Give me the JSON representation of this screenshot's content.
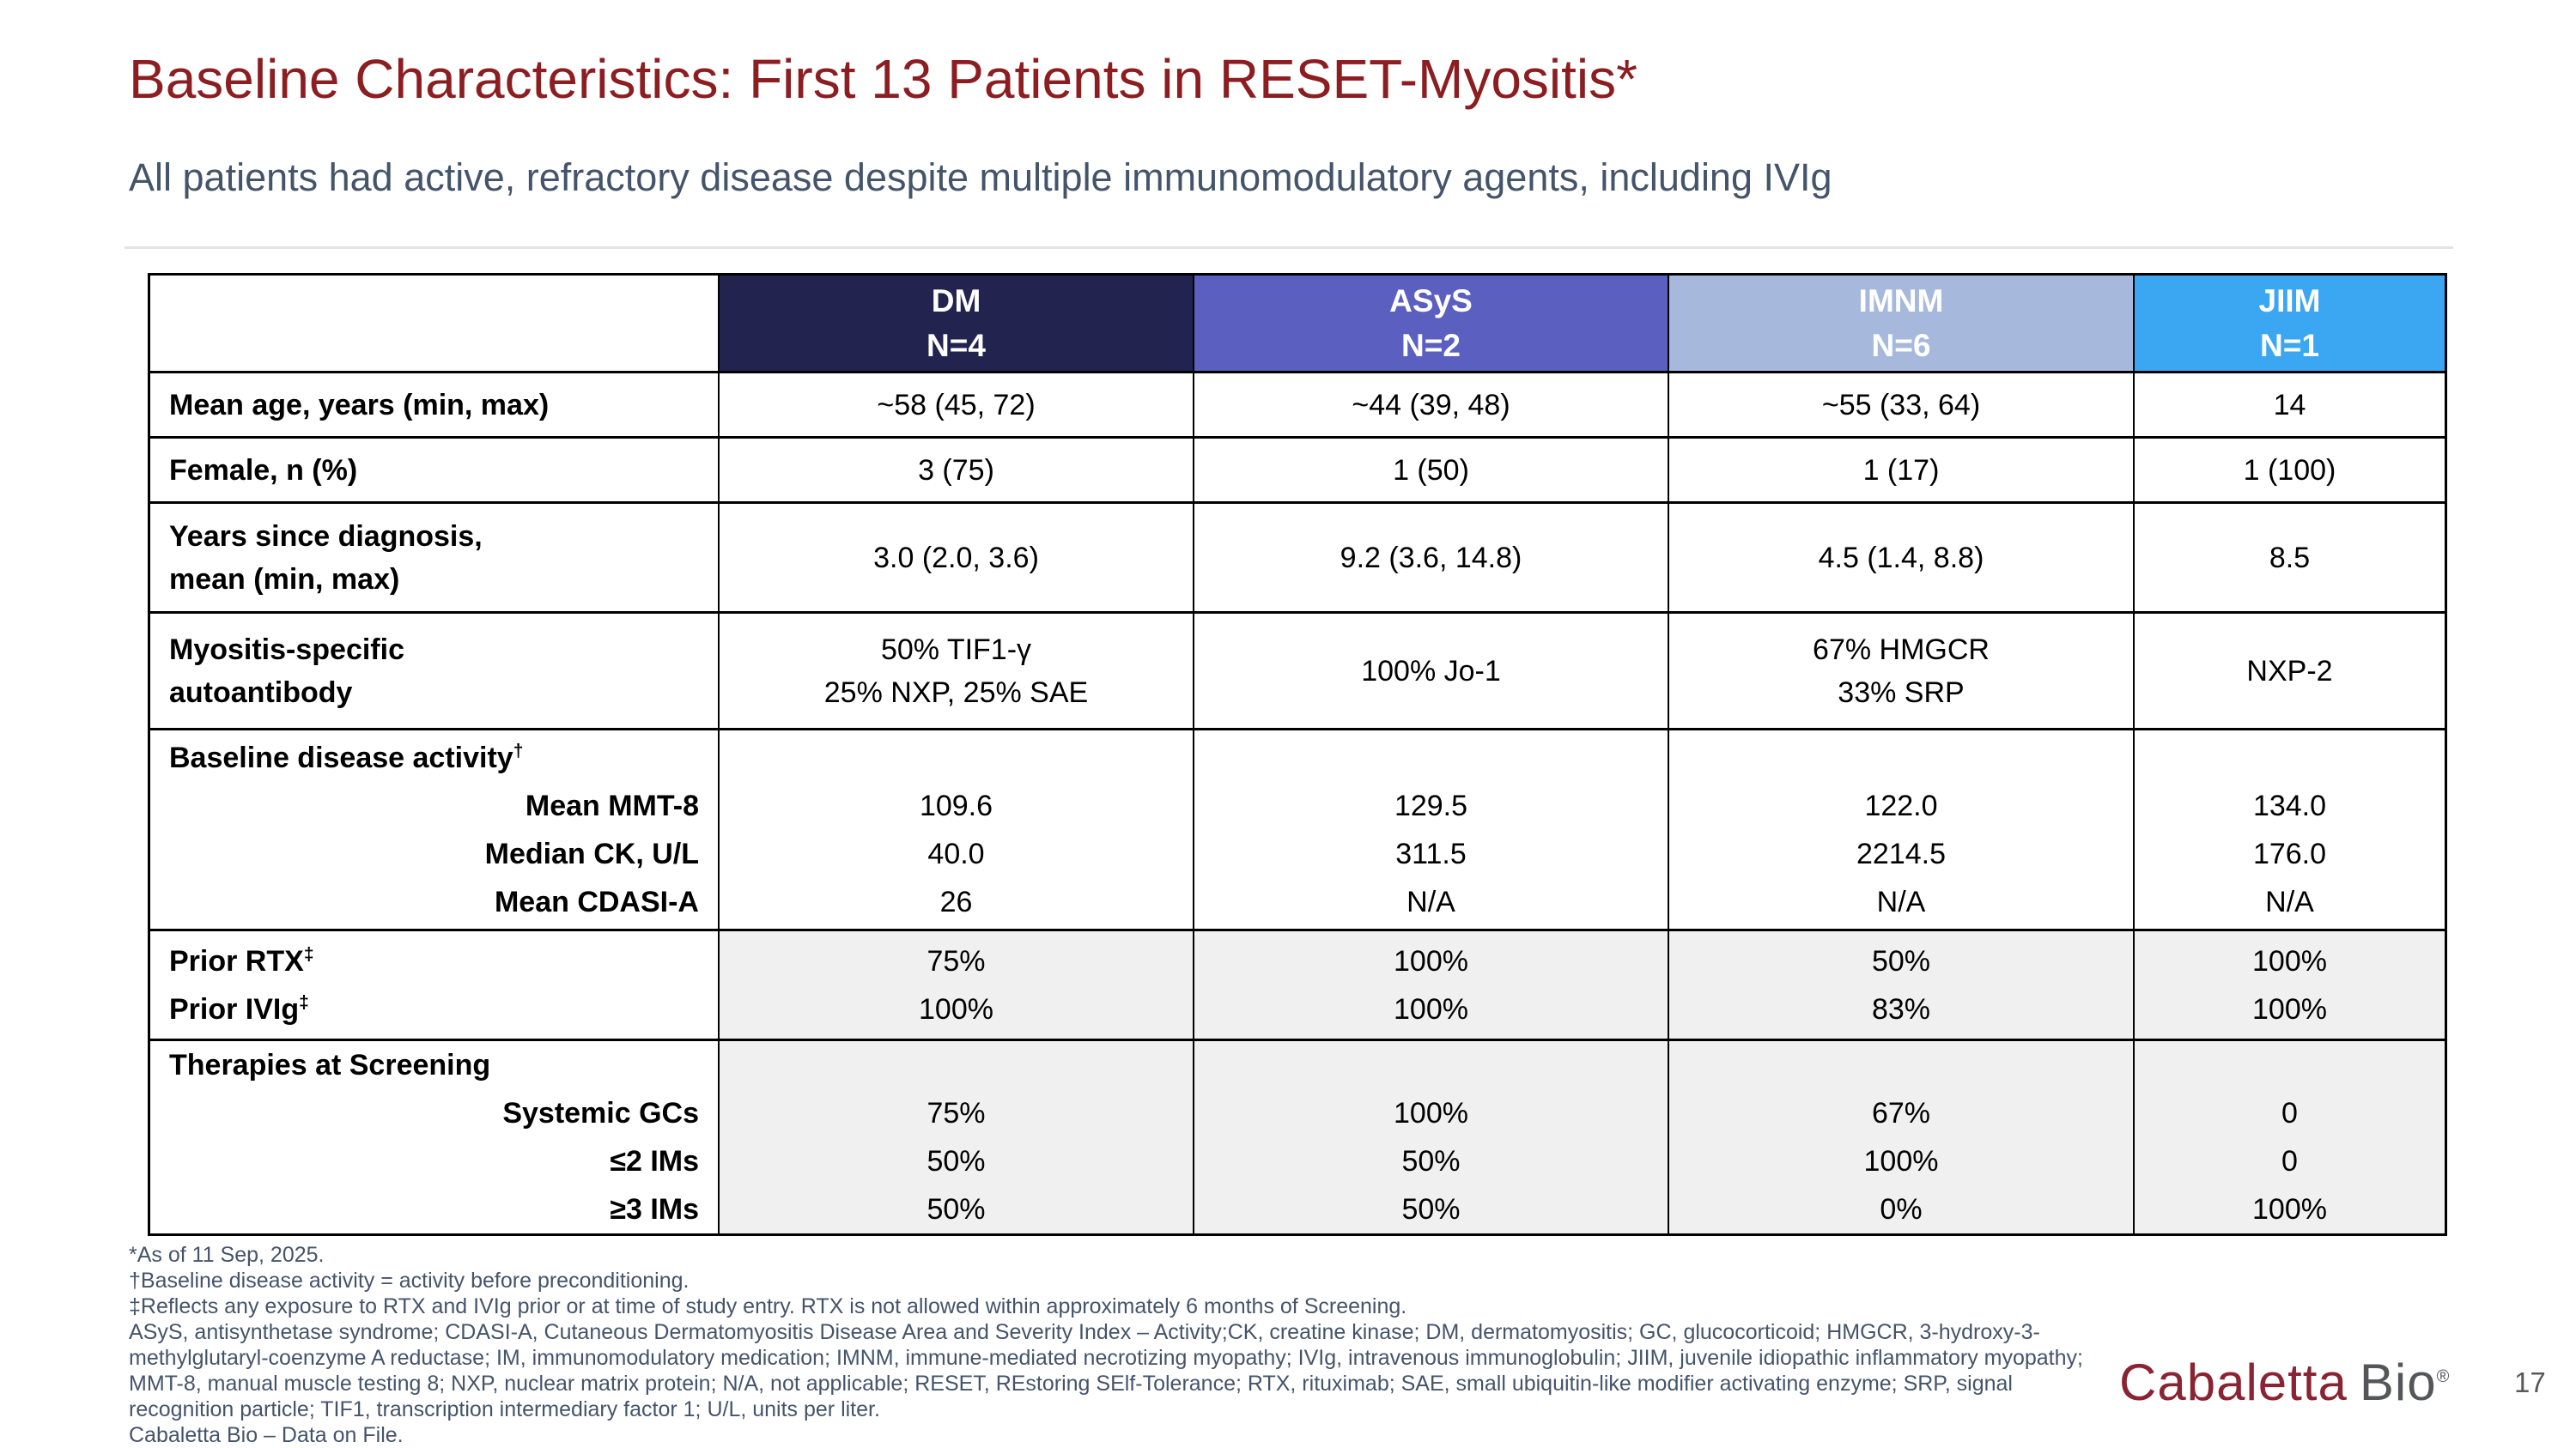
{
  "slide": {
    "title": "Baseline Characteristics: First 13 Patients in RESET-Myositis*",
    "subtitle": "All patients had active, refractory disease despite multiple immunomodulatory agents, including IVIg",
    "page_number": "17",
    "logo": {
      "part1": "Cabaletta",
      "part2": "Bio",
      "reg": "®"
    }
  },
  "theme": {
    "title_color": "#8C1D21",
    "subtitle_color": "#44546A",
    "footnote_color": "#44546A",
    "logo_red": "#8A2432",
    "logo_gray": "#54565A",
    "page_number_color": "#595959",
    "shaded_cell_bg": "#f0f0f0"
  },
  "table": {
    "columns": [
      {
        "name": "",
        "n": "",
        "color": "#ffffff"
      },
      {
        "name": "DM",
        "n": "N=4",
        "color": "#232350"
      },
      {
        "name": "ASyS",
        "n": "N=2",
        "color": "#5B5FC0"
      },
      {
        "name": "IMNM",
        "n": "N=6",
        "color": "#A6B9DC"
      },
      {
        "name": "JIIM",
        "n": "N=1",
        "color": "#3BA6F2"
      }
    ],
    "rows": [
      {
        "label_lines": [
          {
            "text": "Mean age, years (min, max)",
            "align": "left"
          }
        ],
        "values": [
          [
            "~58 (45, 72)"
          ],
          [
            "~44 (39, 48)"
          ],
          [
            "~55 (33, 64)"
          ],
          [
            "14"
          ]
        ],
        "line_mode": false,
        "shaded": false
      },
      {
        "label_lines": [
          {
            "text": "Female, n (%)",
            "align": "left"
          }
        ],
        "values": [
          [
            "3 (75)"
          ],
          [
            "1 (50)"
          ],
          [
            "1 (17)"
          ],
          [
            "1 (100)"
          ]
        ],
        "line_mode": false,
        "shaded": false
      },
      {
        "label_lines": [
          {
            "text": "Years since diagnosis,",
            "align": "left"
          },
          {
            "text": "mean (min, max)",
            "align": "left"
          }
        ],
        "values": [
          [
            "3.0 (2.0, 3.6)"
          ],
          [
            "9.2 (3.6, 14.8)"
          ],
          [
            "4.5 (1.4, 8.8)"
          ],
          [
            "8.5"
          ]
        ],
        "line_mode": false,
        "shaded": false
      },
      {
        "label_lines": [
          {
            "text": "Myositis-specific",
            "align": "left"
          },
          {
            "text": "autoantibody",
            "align": "left"
          }
        ],
        "values": [
          [
            "50% TIF1-γ",
            "25% NXP, 25% SAE"
          ],
          [
            "100% Jo-1"
          ],
          [
            "67% HMGCR",
            "33% SRP"
          ],
          [
            "NXP-2"
          ]
        ],
        "line_mode": false,
        "shaded": false
      },
      {
        "label_lines": [
          {
            "text": "Baseline disease activity",
            "sup": "†",
            "align": "left"
          },
          {
            "text": "Mean MMT-8",
            "align": "right"
          },
          {
            "text": "Median CK, U/L",
            "align": "right"
          },
          {
            "text": "Mean CDASI-A",
            "align": "right"
          }
        ],
        "values": [
          [
            "",
            "109.6",
            "40.0",
            "26"
          ],
          [
            "",
            "129.5",
            "311.5",
            "N/A"
          ],
          [
            "",
            "122.0",
            "2214.5",
            "N/A"
          ],
          [
            "",
            "134.0",
            "176.0",
            "N/A"
          ]
        ],
        "line_mode": true,
        "shaded": false
      },
      {
        "label_lines": [
          {
            "text": "Prior RTX",
            "sup": "‡",
            "align": "left"
          },
          {
            "text": "Prior IVIg",
            "sup": "‡",
            "align": "left"
          }
        ],
        "values": [
          [
            "75%",
            "100%"
          ],
          [
            "100%",
            "100%"
          ],
          [
            "50%",
            "83%"
          ],
          [
            "100%",
            "100%"
          ]
        ],
        "line_mode": true,
        "shaded": true
      },
      {
        "label_lines": [
          {
            "text": "Therapies at Screening",
            "align": "left"
          },
          {
            "text": "Systemic GCs",
            "align": "right"
          },
          {
            "text": "≤2 IMs",
            "align": "right"
          },
          {
            "text": "≥3 IMs",
            "align": "right"
          }
        ],
        "values": [
          [
            "",
            "75%",
            "50%",
            "50%"
          ],
          [
            "",
            "100%",
            "50%",
            "50%"
          ],
          [
            "",
            "67%",
            "100%",
            "0%"
          ],
          [
            "",
            "0",
            "0",
            "100%"
          ]
        ],
        "line_mode": true,
        "shaded": true
      }
    ]
  },
  "footnotes": {
    "lines": [
      "*As of 11 Sep, 2025.",
      "†Baseline disease activity = activity before preconditioning.",
      "‡Reflects any exposure to RTX and IVIg prior or at time of study entry. RTX is not allowed within approximately 6 months of Screening.",
      "ASyS, antisynthetase syndrome; CDASI-A, Cutaneous Dermatomyositis Disease Area and Severity Index – Activity;CK, creatine kinase; DM, dermatomyositis; GC, glucocorticoid; HMGCR, 3-hydroxy-3-",
      "methylglutaryl-coenzyme A reductase; IM, immunomodulatory medication; IMNM, immune-mediated necrotizing myopathy; IVIg, intravenous immunoglobulin; JIIM, juvenile idiopathic inflammatory myopathy;",
      "MMT-8, manual muscle testing 8; NXP, nuclear matrix protein; N/A, not applicable; RESET, REstoring SElf-Tolerance; RTX, rituximab; SAE, small ubiquitin-like modifier activating enzyme; SRP, signal",
      "recognition particle; TIF1, transcription intermediary factor 1; U/L, units per liter.",
      "Cabaletta Bio – Data on File."
    ]
  }
}
